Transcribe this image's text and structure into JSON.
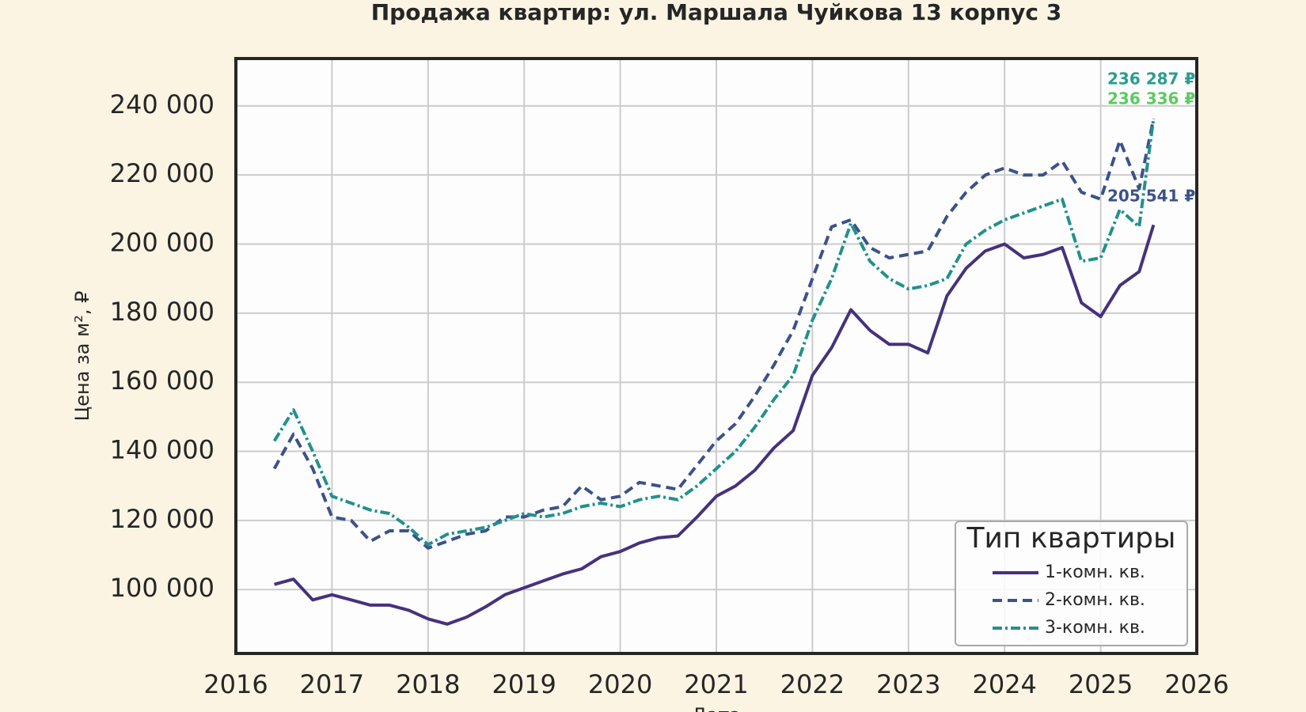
{
  "chart_data": {
    "type": "line",
    "title": "Продажа квартир: ул. Маршала Чуйкова 13 корпус 3",
    "x_label": "Дата",
    "y_label": "Цена за м², ₽",
    "x": [
      2016.4,
      2016.6,
      2016.8,
      2017.0,
      2017.2,
      2017.4,
      2017.6,
      2017.8,
      2018.0,
      2018.2,
      2018.4,
      2018.6,
      2018.8,
      2019.0,
      2019.2,
      2019.4,
      2019.6,
      2019.8,
      2020.0,
      2020.2,
      2020.4,
      2020.6,
      2020.8,
      2021.0,
      2021.2,
      2021.4,
      2021.6,
      2021.8,
      2022.0,
      2022.2,
      2022.4,
      2022.6,
      2022.8,
      2023.0,
      2023.2,
      2023.4,
      2023.6,
      2023.8,
      2024.0,
      2024.2,
      2024.4,
      2024.6,
      2024.8,
      2025.0,
      2025.2,
      2025.4,
      2025.55
    ],
    "series": [
      {
        "name": "1-комн. кв.",
        "color": "#45327e",
        "dash": "none",
        "values": [
          101500,
          103000,
          97000,
          98500,
          97000,
          95500,
          95500,
          94000,
          91500,
          90000,
          92000,
          95000,
          98500,
          100500,
          102500,
          104500,
          106000,
          109500,
          111000,
          113500,
          115000,
          115500,
          121000,
          127000,
          130000,
          134500,
          141000,
          146000,
          162000,
          170000,
          181000,
          175000,
          171000,
          171000,
          168500,
          185000,
          193000,
          198000,
          200000,
          196000,
          197000,
          199000,
          183000,
          179000,
          188000,
          192000,
          205541
        ]
      },
      {
        "name": "2-комн. кв.",
        "color": "#3b528b",
        "dash": "12,7",
        "values": [
          135000,
          145000,
          135000,
          121000,
          120000,
          114000,
          117000,
          117000,
          112000,
          114000,
          116000,
          117000,
          121000,
          121000,
          123000,
          124000,
          130000,
          126000,
          127000,
          131000,
          130000,
          129000,
          136000,
          143000,
          148000,
          156000,
          165000,
          175000,
          190000,
          205000,
          207000,
          199000,
          196000,
          197000,
          198000,
          208000,
          215000,
          220000,
          222000,
          220000,
          220000,
          224000,
          215000,
          213000,
          230000,
          216000,
          236287
        ]
      },
      {
        "name": "3-комн. кв.",
        "color": "#21918c",
        "dash": "12,4,3,4",
        "values": [
          143000,
          152000,
          140000,
          127000,
          125000,
          123000,
          122000,
          118000,
          113000,
          116000,
          117000,
          118000,
          120000,
          122000,
          121000,
          122000,
          124000,
          125000,
          124000,
          126000,
          127000,
          126000,
          130000,
          135000,
          140000,
          147000,
          155000,
          162000,
          178000,
          190000,
          206000,
          195000,
          190000,
          187000,
          188000,
          190000,
          200000,
          204000,
          207000,
          209000,
          211000,
          213000,
          195000,
          196000,
          210000,
          205000,
          236336
        ]
      }
    ],
    "annotations": [
      {
        "text": "236 287 ₽",
        "color": "#2a9d8f"
      },
      {
        "text": "236 336 ₽",
        "color": "#5ec962"
      },
      {
        "text": "205 541 ₽",
        "color": "#3b528b"
      }
    ],
    "xlim": [
      2016,
      2026
    ],
    "xticks": [
      2016,
      2017,
      2018,
      2019,
      2020,
      2021,
      2022,
      2023,
      2024,
      2025,
      2026
    ],
    "ylim": [
      81500,
      253700
    ],
    "yticks": [
      {
        "value": 100000,
        "label": "100 000"
      },
      {
        "value": 120000,
        "label": "120 000"
      },
      {
        "value": 140000,
        "label": "140 000"
      },
      {
        "value": 160000,
        "label": "160 000"
      },
      {
        "value": 180000,
        "label": "180 000"
      },
      {
        "value": 200000,
        "label": "200 000"
      },
      {
        "value": 220000,
        "label": "220 000"
      },
      {
        "value": 240000,
        "label": "240 000"
      }
    ],
    "grid": true,
    "legend_title": "Тип квартиры",
    "legend_position": "lower right"
  }
}
